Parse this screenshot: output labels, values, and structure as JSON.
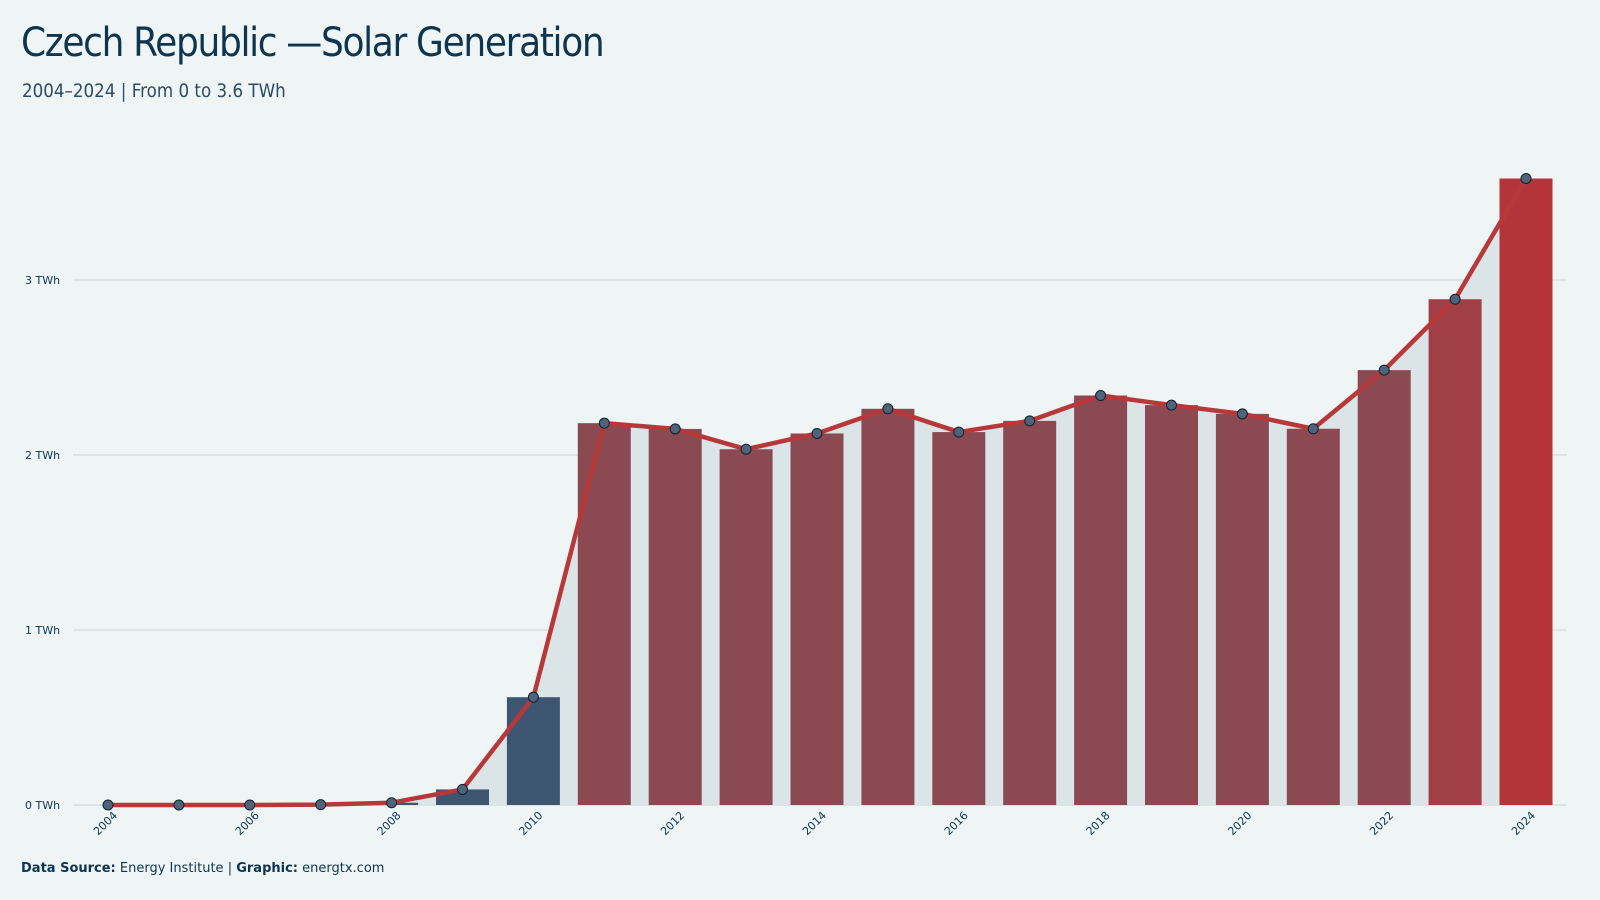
{
  "header": {
    "title": "Czech Republic —Solar Generation",
    "subtitle": "2004–2024 | From 0 to 3.6 TWh"
  },
  "footer": {
    "source_label": "Data Source:",
    "source_value": "Energy Institute",
    "separator": "|",
    "graphic_label": "Graphic:",
    "graphic_value": "energtx.com"
  },
  "colors": {
    "background": "#eff5f5",
    "area_fill": "#dbe5e8",
    "line": "#b8383a",
    "bar_low": "#3e5572",
    "bar_mid": "#8b4a52",
    "bar_high": "#b5343a",
    "marker": "#4f6478",
    "grid": "#c9d2d6",
    "text": "#0e3550"
  },
  "chart_data": {
    "type": "bar",
    "title": "Czech Republic —Solar Generation",
    "subtitle": "2004–2024 | From 0 to 3.6 TWh",
    "unit": "TWh",
    "categories": [
      "2004",
      "2005",
      "2006",
      "2007",
      "2008",
      "2009",
      "2010",
      "2011",
      "2012",
      "2013",
      "2014",
      "2015",
      "2016",
      "2017",
      "2018",
      "2019",
      "2020",
      "2021",
      "2022",
      "2023",
      "2024"
    ],
    "values": [
      0.0,
      0.0,
      0.0,
      0.002,
      0.013,
      0.089,
      0.616,
      2.182,
      2.149,
      2.033,
      2.123,
      2.264,
      2.131,
      2.195,
      2.34,
      2.285,
      2.235,
      2.15,
      2.485,
      2.89,
      3.58
    ],
    "series": [
      {
        "type": "bar",
        "values": [
          0.0,
          0.0,
          0.0,
          0.002,
          0.013,
          0.089,
          0.616,
          2.182,
          2.149,
          2.033,
          2.123,
          2.264,
          2.131,
          2.195,
          2.34,
          2.285,
          2.235,
          2.15,
          2.485,
          2.89,
          3.58
        ]
      },
      {
        "type": "line-area",
        "values": [
          0.0,
          0.0,
          0.0,
          0.002,
          0.013,
          0.089,
          0.616,
          2.182,
          2.149,
          2.033,
          2.123,
          2.264,
          2.131,
          2.195,
          2.34,
          2.285,
          2.235,
          2.15,
          2.485,
          2.89,
          3.58
        ]
      }
    ],
    "yticks": [
      0,
      1,
      2,
      3
    ],
    "ytick_labels": [
      "0 TWh",
      "1 TWh",
      "2 TWh",
      "3 TWh"
    ],
    "xtick_labels": [
      "2004",
      "2006",
      "2008",
      "2010",
      "2012",
      "2014",
      "2016",
      "2018",
      "2020",
      "2022",
      "2024"
    ],
    "ylim": [
      0,
      3.6
    ],
    "grid": true,
    "legend": "none"
  }
}
